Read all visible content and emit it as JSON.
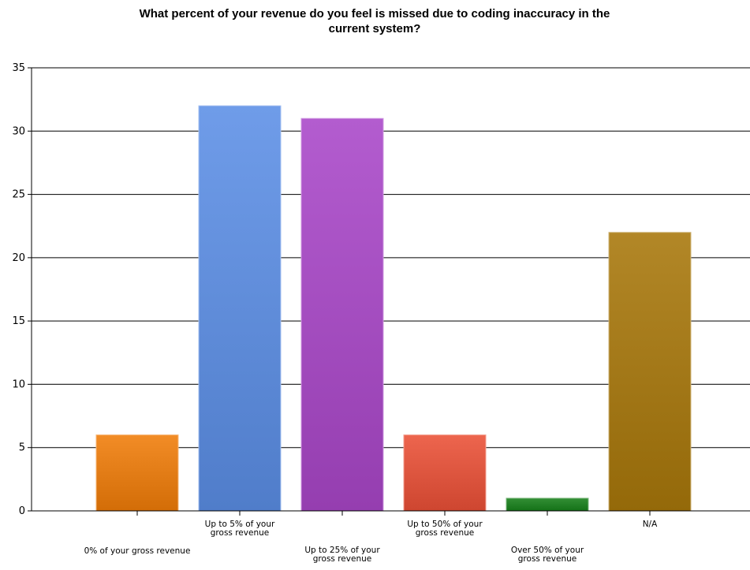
{
  "chart_data": {
    "type": "bar",
    "title": "What percent of your revenue do you feel is missed due to coding inaccuracy in the current system?",
    "categories": [
      "0% of your gross revenue",
      "Up to 5% of your gross revenue",
      "Up to 25% of your gross revenue",
      "Up to 50% of your gross revenue",
      "Over 50% of your gross revenue",
      "N/A"
    ],
    "values": [
      6,
      32,
      31,
      6,
      1,
      22
    ],
    "colors": [
      "#f07c08",
      "#5b8ee6",
      "#a946c8",
      "#ea5036",
      "#17801a",
      "#a8770a"
    ],
    "xlabel": "",
    "ylabel": "",
    "ylim": [
      0,
      35
    ],
    "yticks": [
      0,
      5,
      10,
      15,
      20,
      25,
      30,
      35
    ],
    "grid": true,
    "legend": "none"
  }
}
